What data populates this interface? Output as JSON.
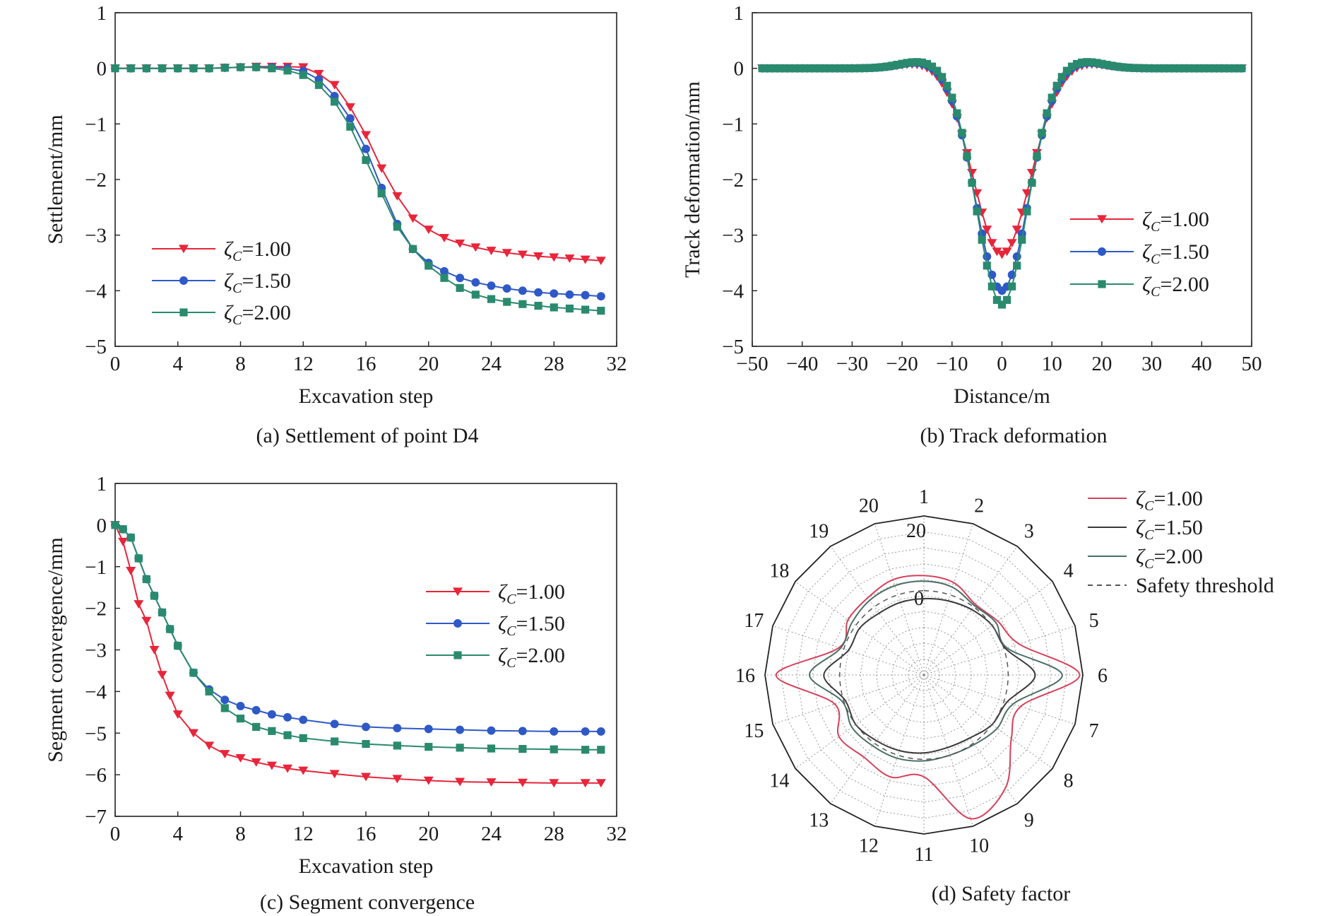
{
  "figure": {
    "captions": {
      "a": "(a) Settlement of point D4",
      "b": "(b) Track deformation",
      "c": "(c) Segment convergence",
      "d": "(d) Safety factor"
    }
  },
  "chart_data": [
    {
      "id": "a",
      "type": "line",
      "title": "(a) Settlement of point D4",
      "xlabel": "Excavation step",
      "ylabel": "Settlement/mm",
      "xlim": [
        0,
        32
      ],
      "ylim": [
        -5,
        1
      ],
      "xticks": [
        0,
        4,
        8,
        12,
        16,
        20,
        24,
        28,
        32
      ],
      "yticks": [
        -5,
        -4,
        -3,
        -2,
        -1,
        0,
        1
      ],
      "grid": false,
      "legend_position": "lower-left",
      "series": [
        {
          "name": "ζC=1.00",
          "color": "#e8253a",
          "marker": "triangle-down",
          "x": [
            0,
            1,
            2,
            3,
            4,
            5,
            6,
            7,
            8,
            9,
            10,
            11,
            12,
            13,
            14,
            15,
            16,
            17,
            18,
            19,
            20,
            21,
            22,
            23,
            24,
            25,
            26,
            27,
            28,
            29,
            30,
            31
          ],
          "y": [
            0,
            0,
            0,
            0,
            0,
            0,
            0,
            0.01,
            0.02,
            0.03,
            0.03,
            0.03,
            0.02,
            -0.1,
            -0.3,
            -0.7,
            -1.2,
            -1.8,
            -2.3,
            -2.7,
            -2.9,
            -3.05,
            -3.15,
            -3.22,
            -3.28,
            -3.32,
            -3.35,
            -3.38,
            -3.4,
            -3.42,
            -3.44,
            -3.46
          ]
        },
        {
          "name": "ζC=1.50",
          "color": "#2e59c6",
          "marker": "circle",
          "x": [
            0,
            1,
            2,
            3,
            4,
            5,
            6,
            7,
            8,
            9,
            10,
            11,
            12,
            13,
            14,
            15,
            16,
            17,
            18,
            19,
            20,
            21,
            22,
            23,
            24,
            25,
            26,
            27,
            28,
            29,
            30,
            31
          ],
          "y": [
            0,
            0,
            0,
            0,
            0,
            0,
            0,
            0.01,
            0.02,
            0.02,
            0.02,
            0.0,
            -0.05,
            -0.2,
            -0.5,
            -0.9,
            -1.45,
            -2.15,
            -2.8,
            -3.25,
            -3.5,
            -3.65,
            -3.77,
            -3.85,
            -3.91,
            -3.96,
            -4.0,
            -4.03,
            -4.05,
            -4.07,
            -4.08,
            -4.1
          ]
        },
        {
          "name": "ζC=2.00",
          "color": "#2a8a6e",
          "marker": "square",
          "x": [
            0,
            1,
            2,
            3,
            4,
            5,
            6,
            7,
            8,
            9,
            10,
            11,
            12,
            13,
            14,
            15,
            16,
            17,
            18,
            19,
            20,
            21,
            22,
            23,
            24,
            25,
            26,
            27,
            28,
            29,
            30,
            31
          ],
          "y": [
            0,
            0,
            0,
            0,
            0,
            0,
            0,
            0.01,
            0.02,
            0.02,
            0.0,
            -0.04,
            -0.12,
            -0.3,
            -0.6,
            -1.05,
            -1.65,
            -2.25,
            -2.85,
            -3.25,
            -3.55,
            -3.77,
            -3.95,
            -4.07,
            -4.15,
            -4.2,
            -4.24,
            -4.27,
            -4.3,
            -4.32,
            -4.34,
            -4.36
          ]
        }
      ]
    },
    {
      "id": "b",
      "type": "line",
      "title": "(b) Track deformation",
      "xlabel": "Distance/m",
      "ylabel": "Track deformation/mm",
      "xlim": [
        -50,
        50
      ],
      "ylim": [
        -5,
        1
      ],
      "xticks": [
        -50,
        -40,
        -30,
        -20,
        -10,
        0,
        10,
        20,
        30,
        40,
        50
      ],
      "yticks": [
        -5,
        -4,
        -3,
        -2,
        -1,
        0,
        1
      ],
      "grid": false,
      "legend_position": "center-right",
      "series": [
        {
          "name": "ζC=1.00",
          "color": "#e8253a",
          "marker": "triangle-down",
          "center": -3.35,
          "width": 5.6,
          "hump": 0.1
        },
        {
          "name": "ζC=1.50",
          "color": "#2e59c6",
          "marker": "circle",
          "center": -4.0,
          "width": 5.2,
          "hump": 0.12
        },
        {
          "name": "ζC=2.00",
          "color": "#2a8a6e",
          "marker": "square",
          "center": -4.25,
          "width": 5.0,
          "hump": 0.13
        }
      ]
    },
    {
      "id": "c",
      "type": "line",
      "title": "(c) Segment convergence",
      "xlabel": "Excavation step",
      "ylabel": "Segment convergence/mm",
      "xlim": [
        0,
        32
      ],
      "ylim": [
        -7,
        1
      ],
      "xticks": [
        0,
        4,
        8,
        12,
        16,
        20,
        24,
        28,
        32
      ],
      "yticks": [
        -7,
        -6,
        -5,
        -4,
        -3,
        -2,
        -1,
        0,
        1
      ],
      "grid": false,
      "legend_position": "upper-right",
      "series": [
        {
          "name": "ζC=1.00",
          "color": "#e8253a",
          "marker": "triangle-down",
          "x": [
            0,
            0.5,
            1,
            1.5,
            2,
            2.5,
            3,
            3.5,
            4,
            5,
            6,
            7,
            8,
            9,
            10,
            11,
            12,
            14,
            16,
            18,
            20,
            22,
            24,
            26,
            28,
            30,
            31
          ],
          "y": [
            0,
            -0.4,
            -1.1,
            -1.9,
            -2.3,
            -3.0,
            -3.6,
            -4.1,
            -4.55,
            -5.0,
            -5.3,
            -5.5,
            -5.6,
            -5.7,
            -5.78,
            -5.85,
            -5.9,
            -5.98,
            -6.05,
            -6.1,
            -6.14,
            -6.17,
            -6.18,
            -6.19,
            -6.2,
            -6.2,
            -6.2
          ]
        },
        {
          "name": "ζC=1.50",
          "color": "#2e59c6",
          "marker": "circle",
          "x": [
            0,
            0.5,
            1,
            1.5,
            2,
            2.5,
            3,
            3.5,
            4,
            5,
            6,
            7,
            8,
            9,
            10,
            11,
            12,
            14,
            16,
            18,
            20,
            22,
            24,
            26,
            28,
            30,
            31
          ],
          "y": [
            0,
            -0.1,
            -0.3,
            -0.8,
            -1.3,
            -1.7,
            -2.1,
            -2.5,
            -2.9,
            -3.55,
            -3.95,
            -4.2,
            -4.35,
            -4.45,
            -4.55,
            -4.62,
            -4.68,
            -4.78,
            -4.85,
            -4.88,
            -4.9,
            -4.92,
            -4.94,
            -4.95,
            -4.96,
            -4.96,
            -4.96
          ]
        },
        {
          "name": "ζC=2.00",
          "color": "#2a8a6e",
          "marker": "square",
          "x": [
            0,
            0.5,
            1,
            1.5,
            2,
            2.5,
            3,
            3.5,
            4,
            5,
            6,
            7,
            8,
            9,
            10,
            11,
            12,
            14,
            16,
            18,
            20,
            22,
            24,
            26,
            28,
            30,
            31
          ],
          "y": [
            0,
            -0.1,
            -0.3,
            -0.8,
            -1.3,
            -1.7,
            -2.1,
            -2.5,
            -2.9,
            -3.55,
            -4.0,
            -4.4,
            -4.65,
            -4.85,
            -4.95,
            -5.05,
            -5.12,
            -5.2,
            -5.26,
            -5.3,
            -5.33,
            -5.35,
            -5.37,
            -5.38,
            -5.39,
            -5.4,
            -5.4
          ]
        }
      ]
    },
    {
      "id": "d",
      "type": "polar",
      "title": "(d) Safety factor",
      "categories": [
        "1",
        "2",
        "3",
        "4",
        "5",
        "6",
        "7",
        "8",
        "9",
        "10",
        "11",
        "12",
        "13",
        "14",
        "15",
        "16",
        "17",
        "18",
        "19",
        "20"
      ],
      "radial_ticks": [
        "0",
        "20"
      ],
      "grid": true,
      "legend_position": "top-right",
      "series": [
        {
          "name": "ζC=1.00",
          "color": "#d6405a",
          "values": [
            12.5,
            12.2,
            11.0,
            11.5,
            12.6,
            19.6,
            12.8,
            13.6,
            17.5,
            19.0,
            12.8,
            13.5,
            12.8,
            13.2,
            11.8,
            18.6,
            11.2,
            11.8,
            12.0,
            12.6
          ]
        },
        {
          "name": "ζC=1.50",
          "color": "#3a3a3a",
          "values": [
            9.6,
            9.8,
            10.2,
            10.6,
            10.8,
            14.0,
            11.0,
            10.6,
            9.8,
            9.6,
            9.8,
            10.0,
            10.2,
            10.6,
            10.4,
            12.6,
            10.0,
            10.0,
            9.6,
            9.6
          ]
        },
        {
          "name": "ζC=2.00",
          "color": "#4a6e66",
          "values": [
            11.8,
            11.6,
            10.8,
            11.2,
            11.0,
            17.4,
            11.8,
            11.4,
            10.8,
            10.6,
            10.8,
            11.0,
            11.0,
            11.2,
            10.8,
            14.4,
            11.0,
            11.2,
            11.6,
            11.8
          ]
        },
        {
          "name": "Safety threshold",
          "color": "#555555",
          "dashed": true,
          "values": [
            10.6,
            10.6,
            10.6,
            10.6,
            10.6,
            10.6,
            10.6,
            10.6,
            10.6,
            10.6,
            10.6,
            10.6,
            10.6,
            10.6,
            10.6,
            10.6,
            10.6,
            10.6,
            10.6,
            10.6
          ]
        }
      ]
    }
  ]
}
